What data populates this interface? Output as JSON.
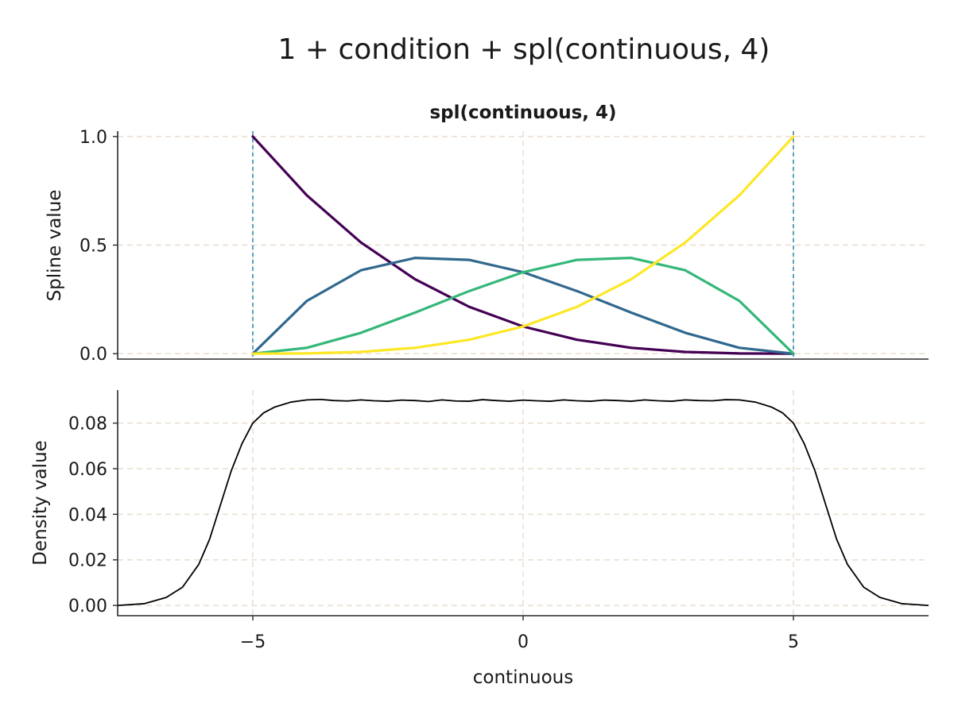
{
  "figure": {
    "title": "1 + condition + spl(continuous, 4)"
  },
  "chart_data": [
    {
      "type": "line",
      "title": "spl(continuous, 4)",
      "xlabel": "",
      "ylabel": "Spline value",
      "xlim": [
        -7.5,
        7.5
      ],
      "ylim": [
        -0.025,
        1.025
      ],
      "yticks": [
        0.0,
        0.5,
        1.0
      ],
      "ytick_labels": [
        "0.0",
        "0.5",
        "1.0"
      ],
      "xticks": [
        -5,
        0,
        5
      ],
      "grid": true,
      "legend": "none",
      "knots": [
        -5,
        5
      ],
      "knot_color": "#5ba3c6",
      "x": [
        -5,
        -4,
        -3,
        -2,
        -1,
        0,
        1,
        2,
        3,
        4,
        5
      ],
      "series": [
        {
          "color": "#440154",
          "values": [
            1.0,
            0.729,
            0.512,
            0.343,
            0.216,
            0.125,
            0.064,
            0.027,
            0.008,
            0.001,
            0.0
          ]
        },
        {
          "color": "#31688e",
          "values": [
            0.0,
            0.243,
            0.384,
            0.441,
            0.432,
            0.375,
            0.288,
            0.189,
            0.096,
            0.027,
            0.0
          ]
        },
        {
          "color": "#35b779",
          "values": [
            0.0,
            0.027,
            0.096,
            0.189,
            0.288,
            0.375,
            0.432,
            0.441,
            0.384,
            0.243,
            0.0
          ]
        },
        {
          "color": "#fde725",
          "values": [
            0.0,
            0.001,
            0.008,
            0.027,
            0.064,
            0.125,
            0.216,
            0.343,
            0.512,
            0.729,
            1.0
          ]
        }
      ]
    },
    {
      "type": "line",
      "title": "",
      "xlabel": "continuous",
      "ylabel": "Density value",
      "xlim": [
        -7.5,
        7.5
      ],
      "ylim": [
        -0.0045,
        0.0945
      ],
      "yticks": [
        0.0,
        0.02,
        0.04,
        0.06,
        0.08
      ],
      "ytick_labels": [
        "0.00",
        "0.02",
        "0.04",
        "0.06",
        "0.08"
      ],
      "xticks": [
        -5,
        0,
        5
      ],
      "xtick_labels": [
        "−5",
        "0",
        "5"
      ],
      "grid": true,
      "legend": "none",
      "series": [
        {
          "color": "#000000",
          "x": [
            -7.5,
            -7.0,
            -6.6,
            -6.3,
            -6.0,
            -5.8,
            -5.6,
            -5.4,
            -5.2,
            -5.0,
            -4.8,
            -4.6,
            -4.3,
            -4.0,
            -3.75,
            -3.5,
            -3.25,
            -3.0,
            -2.75,
            -2.5,
            -2.25,
            -2.0,
            -1.75,
            -1.5,
            -1.25,
            -1.0,
            -0.75,
            -0.5,
            -0.25,
            0.0,
            0.25,
            0.5,
            0.75,
            1.0,
            1.25,
            1.5,
            1.75,
            2.0,
            2.25,
            2.5,
            2.75,
            3.0,
            3.25,
            3.5,
            3.75,
            4.0,
            4.3,
            4.6,
            4.8,
            5.0,
            5.2,
            5.4,
            5.6,
            5.8,
            6.0,
            6.3,
            6.6,
            7.0,
            7.5
          ],
          "values": [
            0.0,
            0.0008,
            0.0035,
            0.008,
            0.018,
            0.029,
            0.044,
            0.059,
            0.071,
            0.08,
            0.0845,
            0.087,
            0.0892,
            0.0902,
            0.0904,
            0.0899,
            0.0897,
            0.0902,
            0.0898,
            0.0896,
            0.0901,
            0.0899,
            0.0895,
            0.0902,
            0.0897,
            0.0896,
            0.0903,
            0.0899,
            0.0896,
            0.0901,
            0.0898,
            0.0896,
            0.0902,
            0.0898,
            0.0896,
            0.0901,
            0.0899,
            0.0896,
            0.0902,
            0.0898,
            0.0896,
            0.0902,
            0.0899,
            0.0898,
            0.0903,
            0.0902,
            0.0892,
            0.087,
            0.0845,
            0.08,
            0.071,
            0.059,
            0.044,
            0.029,
            0.018,
            0.008,
            0.0035,
            0.0008,
            0.0
          ]
        }
      ]
    }
  ]
}
